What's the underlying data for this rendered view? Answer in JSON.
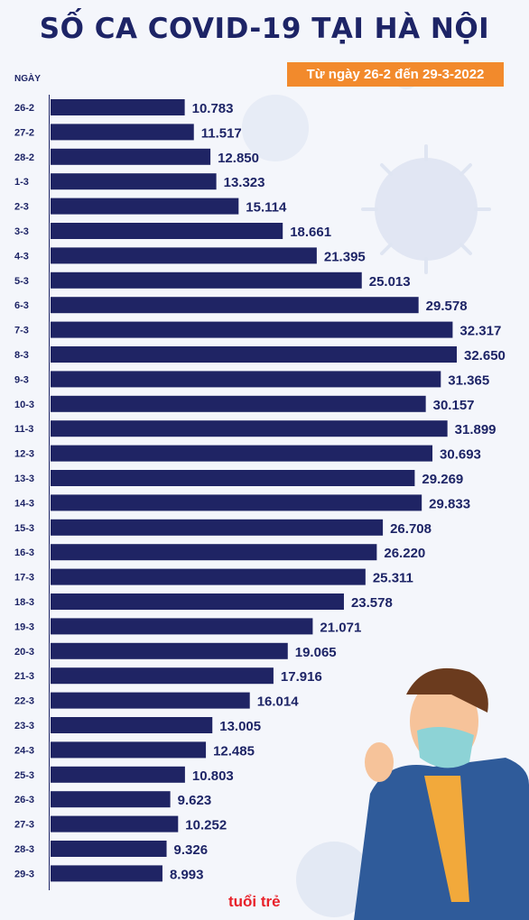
{
  "title": "SỐ CA COVID-19 TẠI HÀ NỘI",
  "subtitle": "Từ ngày 26-2 đến 29-3-2022",
  "logo": "tuổi trẻ",
  "colors": {
    "bar": "#1f2464",
    "text": "#1d2466",
    "badge": "#f28a2c",
    "background": "#f4f6fb"
  },
  "chart_data": {
    "type": "bar",
    "orientation": "horizontal",
    "xlabel": "",
    "ylabel": "NGÀY",
    "categories": [
      "26-2",
      "27-2",
      "28-2",
      "1-3",
      "2-3",
      "3-3",
      "4-3",
      "5-3",
      "6-3",
      "7-3",
      "8-3",
      "9-3",
      "10-3",
      "11-3",
      "12-3",
      "13-3",
      "14-3",
      "15-3",
      "16-3",
      "17-3",
      "18-3",
      "19-3",
      "20-3",
      "21-3",
      "22-3",
      "23-3",
      "24-3",
      "25-3",
      "26-3",
      "27-3",
      "28-3",
      "29-3"
    ],
    "values": [
      10783,
      11517,
      12850,
      13323,
      15114,
      18661,
      21395,
      25013,
      29578,
      32317,
      32650,
      31365,
      30157,
      31899,
      30693,
      29269,
      29833,
      26708,
      26220,
      25311,
      23578,
      21071,
      19065,
      17916,
      16014,
      13005,
      12485,
      10803,
      9623,
      10252,
      9326,
      8993
    ],
    "value_labels": [
      "10.783",
      "11.517",
      "12.850",
      "13.323",
      "15.114",
      "18.661",
      "21.395",
      "25.013",
      "29.578",
      "32.317",
      "32.650",
      "31.365",
      "30.157",
      "31.899",
      "30.693",
      "29.269",
      "29.833",
      "26.708",
      "26.220",
      "25.311",
      "23.578",
      "21.071",
      "19.065",
      "17.916",
      "16.014",
      "13.005",
      "12.485",
      "10.803",
      "9.623",
      "10.252",
      "9.326",
      "8.993"
    ],
    "grid": false,
    "legend": "none"
  }
}
